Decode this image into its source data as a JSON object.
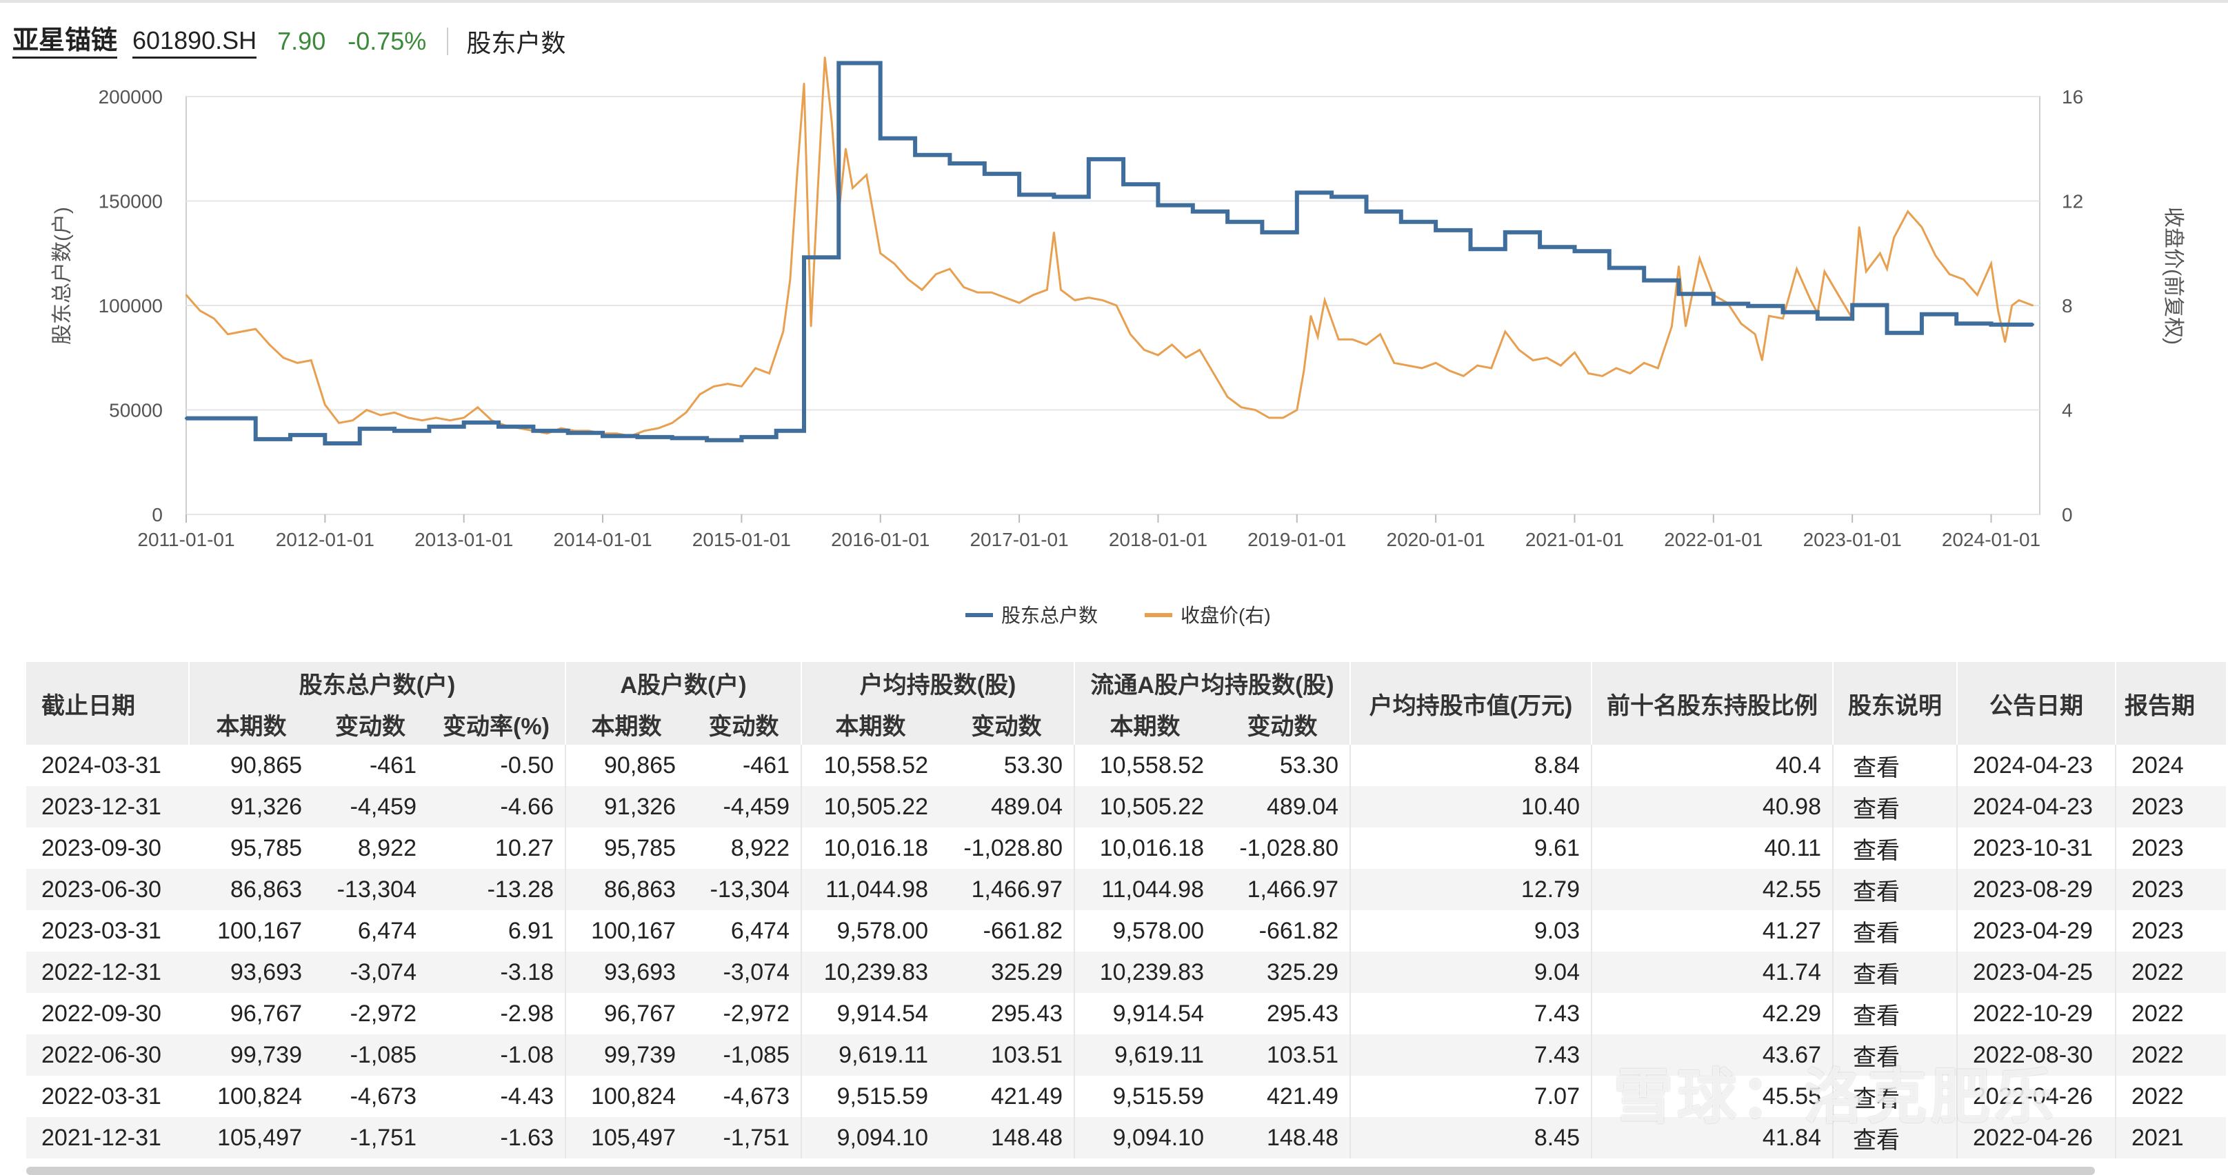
{
  "header": {
    "name": "亚星锚链",
    "code": "601890.SH",
    "price": "7.90",
    "change": "-0.75%",
    "page_title": "股东户数"
  },
  "colors": {
    "holders": "#3f6d9c",
    "price": "#e8a050",
    "up": "#3a8a3a"
  },
  "chart_data": {
    "type": "line",
    "x_axis_labels": [
      "2011-01-01",
      "2012-01-01",
      "2013-01-01",
      "2014-01-01",
      "2015-01-01",
      "2016-01-01",
      "2017-01-01",
      "2018-01-01",
      "2019-01-01",
      "2020-01-01",
      "2021-01-01",
      "2022-01-01",
      "2023-01-01",
      "2024-01-01"
    ],
    "y_left": {
      "label": "股东总户数(户)",
      "ticks": [
        "0",
        "50000",
        "100000",
        "150000",
        "200000"
      ],
      "lim": [
        0,
        200000
      ]
    },
    "y_right": {
      "label": "收盘价(前复权)",
      "ticks": [
        "0",
        "4",
        "8",
        "12",
        "16"
      ],
      "lim": [
        0,
        16
      ]
    },
    "xlim": [
      2011.0,
      2024.35
    ],
    "legend": {
      "placement": "bottom-center"
    },
    "series": [
      {
        "name": "股东总户数",
        "step": true,
        "points": [
          [
            2011.0,
            46000
          ],
          [
            2011.25,
            46000
          ],
          [
            2011.5,
            36000
          ],
          [
            2011.75,
            38000
          ],
          [
            2012.0,
            34000
          ],
          [
            2012.25,
            41000
          ],
          [
            2012.5,
            40000
          ],
          [
            2012.75,
            42000
          ],
          [
            2013.0,
            44000
          ],
          [
            2013.25,
            42000
          ],
          [
            2013.5,
            40000
          ],
          [
            2013.75,
            39000
          ],
          [
            2014.0,
            37500
          ],
          [
            2014.25,
            37000
          ],
          [
            2014.5,
            36500
          ],
          [
            2014.75,
            35500
          ],
          [
            2015.0,
            37000
          ],
          [
            2015.25,
            40000
          ],
          [
            2015.45,
            123000
          ],
          [
            2015.7,
            216000
          ],
          [
            2016.0,
            180000
          ],
          [
            2016.25,
            172000
          ],
          [
            2016.5,
            168000
          ],
          [
            2016.75,
            163000
          ],
          [
            2017.0,
            153000
          ],
          [
            2017.25,
            152000
          ],
          [
            2017.5,
            170000
          ],
          [
            2017.75,
            158000
          ],
          [
            2018.0,
            148000
          ],
          [
            2018.25,
            145000
          ],
          [
            2018.5,
            140000
          ],
          [
            2018.75,
            135000
          ],
          [
            2019.0,
            154000
          ],
          [
            2019.25,
            152000
          ],
          [
            2019.5,
            145000
          ],
          [
            2019.75,
            140000
          ],
          [
            2020.0,
            136000
          ],
          [
            2020.25,
            127000
          ],
          [
            2020.5,
            135000
          ],
          [
            2020.75,
            128000
          ],
          [
            2021.0,
            126000
          ],
          [
            2021.25,
            118000
          ],
          [
            2021.5,
            112000
          ],
          [
            2021.75,
            105497
          ],
          [
            2022.0,
            100824
          ],
          [
            2022.25,
            99739
          ],
          [
            2022.5,
            96767
          ],
          [
            2022.75,
            93693
          ],
          [
            2023.0,
            100167
          ],
          [
            2023.25,
            86863
          ],
          [
            2023.5,
            95785
          ],
          [
            2023.75,
            91326
          ],
          [
            2024.0,
            90865
          ],
          [
            2024.3,
            90865
          ]
        ]
      },
      {
        "name": "收盘价(右)",
        "points": [
          [
            2011.0,
            8.4
          ],
          [
            2011.1,
            7.8
          ],
          [
            2011.2,
            7.5
          ],
          [
            2011.3,
            6.9
          ],
          [
            2011.4,
            7.0
          ],
          [
            2011.5,
            7.1
          ],
          [
            2011.6,
            6.5
          ],
          [
            2011.7,
            6.0
          ],
          [
            2011.8,
            5.8
          ],
          [
            2011.9,
            5.9
          ],
          [
            2012.0,
            4.2
          ],
          [
            2012.1,
            3.5
          ],
          [
            2012.2,
            3.6
          ],
          [
            2012.3,
            4.0
          ],
          [
            2012.4,
            3.8
          ],
          [
            2012.5,
            3.9
          ],
          [
            2012.6,
            3.7
          ],
          [
            2012.7,
            3.6
          ],
          [
            2012.8,
            3.7
          ],
          [
            2012.9,
            3.6
          ],
          [
            2013.0,
            3.7
          ],
          [
            2013.1,
            4.1
          ],
          [
            2013.2,
            3.6
          ],
          [
            2013.3,
            3.4
          ],
          [
            2013.4,
            3.3
          ],
          [
            2013.5,
            3.2
          ],
          [
            2013.6,
            3.1
          ],
          [
            2013.7,
            3.3
          ],
          [
            2013.8,
            3.2
          ],
          [
            2013.9,
            3.2
          ],
          [
            2014.0,
            3.1
          ],
          [
            2014.1,
            3.1
          ],
          [
            2014.2,
            3.0
          ],
          [
            2014.3,
            3.2
          ],
          [
            2014.4,
            3.3
          ],
          [
            2014.5,
            3.5
          ],
          [
            2014.6,
            3.9
          ],
          [
            2014.7,
            4.6
          ],
          [
            2014.8,
            4.9
          ],
          [
            2014.9,
            5.0
          ],
          [
            2015.0,
            4.9
          ],
          [
            2015.1,
            5.6
          ],
          [
            2015.2,
            5.4
          ],
          [
            2015.3,
            7.0
          ],
          [
            2015.35,
            9.0
          ],
          [
            2015.4,
            13.0
          ],
          [
            2015.45,
            16.5
          ],
          [
            2015.5,
            7.2
          ],
          [
            2015.55,
            12.5
          ],
          [
            2015.6,
            17.5
          ],
          [
            2015.65,
            15.0
          ],
          [
            2015.7,
            11.5
          ],
          [
            2015.75,
            14.0
          ],
          [
            2015.8,
            12.5
          ],
          [
            2015.9,
            13.0
          ],
          [
            2016.0,
            10.0
          ],
          [
            2016.1,
            9.6
          ],
          [
            2016.2,
            9.0
          ],
          [
            2016.3,
            8.6
          ],
          [
            2016.4,
            9.2
          ],
          [
            2016.5,
            9.4
          ],
          [
            2016.6,
            8.7
          ],
          [
            2016.7,
            8.5
          ],
          [
            2016.8,
            8.5
          ],
          [
            2016.9,
            8.3
          ],
          [
            2017.0,
            8.1
          ],
          [
            2017.1,
            8.4
          ],
          [
            2017.2,
            8.6
          ],
          [
            2017.25,
            10.8
          ],
          [
            2017.3,
            8.6
          ],
          [
            2017.4,
            8.2
          ],
          [
            2017.5,
            8.3
          ],
          [
            2017.6,
            8.2
          ],
          [
            2017.7,
            8.0
          ],
          [
            2017.8,
            6.9
          ],
          [
            2017.9,
            6.3
          ],
          [
            2018.0,
            6.1
          ],
          [
            2018.1,
            6.5
          ],
          [
            2018.2,
            6.0
          ],
          [
            2018.3,
            6.3
          ],
          [
            2018.4,
            5.4
          ],
          [
            2018.5,
            4.5
          ],
          [
            2018.6,
            4.1
          ],
          [
            2018.7,
            4.0
          ],
          [
            2018.8,
            3.7
          ],
          [
            2018.9,
            3.7
          ],
          [
            2019.0,
            4.0
          ],
          [
            2019.05,
            5.5
          ],
          [
            2019.1,
            7.6
          ],
          [
            2019.15,
            6.8
          ],
          [
            2019.2,
            8.2
          ],
          [
            2019.3,
            6.7
          ],
          [
            2019.4,
            6.7
          ],
          [
            2019.5,
            6.5
          ],
          [
            2019.6,
            6.9
          ],
          [
            2019.7,
            5.8
          ],
          [
            2019.8,
            5.7
          ],
          [
            2019.9,
            5.6
          ],
          [
            2020.0,
            5.8
          ],
          [
            2020.1,
            5.5
          ],
          [
            2020.2,
            5.3
          ],
          [
            2020.3,
            5.7
          ],
          [
            2020.4,
            5.6
          ],
          [
            2020.5,
            7.0
          ],
          [
            2020.6,
            6.3
          ],
          [
            2020.7,
            5.9
          ],
          [
            2020.8,
            6.0
          ],
          [
            2020.9,
            5.7
          ],
          [
            2021.0,
            6.2
          ],
          [
            2021.1,
            5.4
          ],
          [
            2021.2,
            5.3
          ],
          [
            2021.3,
            5.6
          ],
          [
            2021.4,
            5.4
          ],
          [
            2021.5,
            5.8
          ],
          [
            2021.6,
            5.6
          ],
          [
            2021.7,
            7.2
          ],
          [
            2021.75,
            9.5
          ],
          [
            2021.8,
            7.2
          ],
          [
            2021.9,
            9.8
          ],
          [
            2022.0,
            8.4
          ],
          [
            2022.1,
            8.1
          ],
          [
            2022.2,
            7.3
          ],
          [
            2022.3,
            6.9
          ],
          [
            2022.35,
            5.9
          ],
          [
            2022.4,
            7.6
          ],
          [
            2022.5,
            7.5
          ],
          [
            2022.6,
            9.4
          ],
          [
            2022.7,
            8.2
          ],
          [
            2022.75,
            7.7
          ],
          [
            2022.8,
            9.3
          ],
          [
            2022.9,
            8.4
          ],
          [
            2023.0,
            7.5
          ],
          [
            2023.05,
            11.0
          ],
          [
            2023.1,
            9.3
          ],
          [
            2023.2,
            10.0
          ],
          [
            2023.25,
            9.4
          ],
          [
            2023.3,
            10.6
          ],
          [
            2023.4,
            11.6
          ],
          [
            2023.5,
            11.0
          ],
          [
            2023.6,
            9.9
          ],
          [
            2023.7,
            9.2
          ],
          [
            2023.8,
            9.0
          ],
          [
            2023.9,
            8.4
          ],
          [
            2024.0,
            9.6
          ],
          [
            2024.05,
            7.8
          ],
          [
            2024.1,
            6.6
          ],
          [
            2024.15,
            8.0
          ],
          [
            2024.2,
            8.2
          ],
          [
            2024.3,
            8.0
          ]
        ]
      }
    ]
  },
  "table": {
    "head": {
      "date": "截止日期",
      "holders_group": "股东总户数(户)",
      "a_holders_group": "A股户数(户)",
      "avg_shares_group": "户均持股数(股)",
      "float_avg_group": "流通A股户均持股数(股)",
      "avg_value": "户均持股市值(万元)",
      "top10": "前十名股东持股比例",
      "desc": "股东说明",
      "announce": "公告日期",
      "report": "报告期",
      "cur": "本期数",
      "change": "变动数",
      "rate": "变动率(%)"
    },
    "rows": [
      [
        "2024-03-31",
        "90,865",
        "-461",
        "-0.50",
        "90,865",
        "-461",
        "10,558.52",
        "53.30",
        "10,558.52",
        "53.30",
        "8.84",
        "40.4",
        "查看",
        "2024-04-23",
        "2024"
      ],
      [
        "2023-12-31",
        "91,326",
        "-4,459",
        "-4.66",
        "91,326",
        "-4,459",
        "10,505.22",
        "489.04",
        "10,505.22",
        "489.04",
        "10.40",
        "40.98",
        "查看",
        "2024-04-23",
        "2023"
      ],
      [
        "2023-09-30",
        "95,785",
        "8,922",
        "10.27",
        "95,785",
        "8,922",
        "10,016.18",
        "-1,028.80",
        "10,016.18",
        "-1,028.80",
        "9.61",
        "40.11",
        "查看",
        "2023-10-31",
        "2023"
      ],
      [
        "2023-06-30",
        "86,863",
        "-13,304",
        "-13.28",
        "86,863",
        "-13,304",
        "11,044.98",
        "1,466.97",
        "11,044.98",
        "1,466.97",
        "12.79",
        "42.55",
        "查看",
        "2023-08-29",
        "2023"
      ],
      [
        "2023-03-31",
        "100,167",
        "6,474",
        "6.91",
        "100,167",
        "6,474",
        "9,578.00",
        "-661.82",
        "9,578.00",
        "-661.82",
        "9.03",
        "41.27",
        "查看",
        "2023-04-29",
        "2023"
      ],
      [
        "2022-12-31",
        "93,693",
        "-3,074",
        "-3.18",
        "93,693",
        "-3,074",
        "10,239.83",
        "325.29",
        "10,239.83",
        "325.29",
        "9.04",
        "41.74",
        "查看",
        "2023-04-25",
        "2022"
      ],
      [
        "2022-09-30",
        "96,767",
        "-2,972",
        "-2.98",
        "96,767",
        "-2,972",
        "9,914.54",
        "295.43",
        "9,914.54",
        "295.43",
        "7.43",
        "42.29",
        "查看",
        "2022-10-29",
        "2022"
      ],
      [
        "2022-06-30",
        "99,739",
        "-1,085",
        "-1.08",
        "99,739",
        "-1,085",
        "9,619.11",
        "103.51",
        "9,619.11",
        "103.51",
        "7.43",
        "43.67",
        "查看",
        "2022-08-30",
        "2022"
      ],
      [
        "2022-03-31",
        "100,824",
        "-4,673",
        "-4.43",
        "100,824",
        "-4,673",
        "9,515.59",
        "421.49",
        "9,515.59",
        "421.49",
        "7.07",
        "45.55",
        "查看",
        "2022-04-26",
        "2022"
      ],
      [
        "2021-12-31",
        "105,497",
        "-1,751",
        "-1.63",
        "105,497",
        "-1,751",
        "9,094.10",
        "148.48",
        "9,094.10",
        "148.48",
        "8.45",
        "41.84",
        "查看",
        "2022-04-26",
        "2021"
      ]
    ]
  },
  "watermark": "雪球：洛克肥乐"
}
